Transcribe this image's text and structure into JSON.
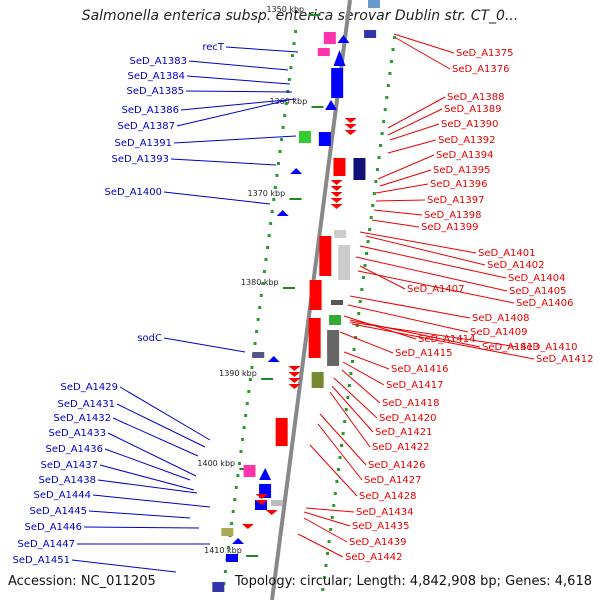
{
  "title": "Salmonella enterica subsp. enterica serovar Dublin str. CT_0...",
  "footer": {
    "accession": "Accession: NC_011205",
    "topology": "Topology: circular; Length: 4,842,908 bp; Genes: 4,618"
  },
  "colors": {
    "backbone": "#888888",
    "forward_label": "#0000cc",
    "reverse_label": "#ee0000",
    "forward_gene": "#0000ff",
    "reverse_gene": "#ff0000",
    "tick": "#228822"
  },
  "position_ticks": [
    "1350 kbp",
    "1360 kbp",
    "1370 kbp",
    "1380 kbp",
    "1390 kbp",
    "1400 kbp",
    "1410 kbp"
  ],
  "left_labels": [
    "recT",
    "SeD_A1383",
    "SeD_A1384",
    "SeD_A1385",
    "SeD_A1386",
    "SeD_A1387",
    "SeD_A1391",
    "SeD_A1393",
    "SeD_A1400",
    "sodC",
    "SeD_A1429",
    "SeD_A1431",
    "SeD_A1432",
    "SeD_A1433",
    "SeD_A1436",
    "SeD_A1437",
    "SeD_A1438",
    "SeD_A1444",
    "SeD_A1445",
    "SeD_A1446",
    "SeD_A1447",
    "SeD_A1451"
  ],
  "right_labels": [
    "SeD_A1375",
    "SeD_A1376",
    "SeD_A1388",
    "SeD_A1389",
    "SeD_A1390",
    "SeD_A1392",
    "SeD_A1394",
    "SeD_A1395",
    "SeD_A1396",
    "SeD_A1397",
    "SeD_A1398",
    "SeD_A1399",
    "SeD_A1401",
    "SeD_A1402",
    "SeD_A1404",
    "SeD_A1405",
    "SeD_A1407",
    "SeD_A1406",
    "SeD_A1408",
    "SeD_A1409",
    "SeD_A1414",
    "SeD_A1413",
    "SeD_A1410",
    "SeD_A1412",
    "SeD_A1415",
    "SeD_A1416",
    "SeD_A1417",
    "SeD_A1418",
    "SeD_A1420",
    "SeD_A1421",
    "SeD_A1422",
    "SeD_A1426",
    "SeD_A1427",
    "SeD_A1428",
    "SeD_A1434",
    "SeD_A1435",
    "SeD_A1439",
    "SeD_A1442"
  ]
}
